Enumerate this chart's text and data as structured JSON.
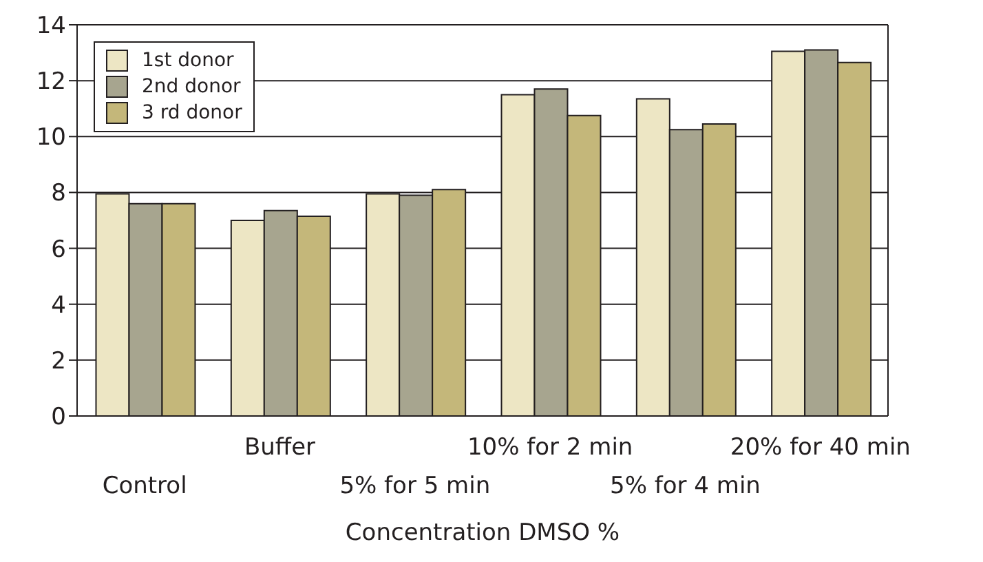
{
  "chart_data": {
    "type": "bar",
    "xlabel": "Concentration DMSO %",
    "categories": [
      "Control",
      "Buffer",
      "5% for 5 min",
      "10% for 2 min",
      "5% for 4 min",
      "20% for 40 min"
    ],
    "series": [
      {
        "name": "1st donor",
        "color": "#ede6c4",
        "values": [
          7.95,
          7.0,
          7.95,
          11.5,
          11.35,
          13.05
        ]
      },
      {
        "name": "2nd donor",
        "color": "#a7a58f",
        "values": [
          7.6,
          7.35,
          7.9,
          11.7,
          10.25,
          13.1
        ]
      },
      {
        "name": "3 rd donor",
        "color": "#c4b77a",
        "values": [
          7.6,
          7.15,
          8.1,
          10.75,
          10.45,
          12.65
        ]
      }
    ],
    "ylim": [
      0,
      14
    ],
    "yticks": [
      0,
      2,
      4,
      6,
      8,
      10,
      12,
      14
    ],
    "grid": "y",
    "legend": "top left"
  }
}
